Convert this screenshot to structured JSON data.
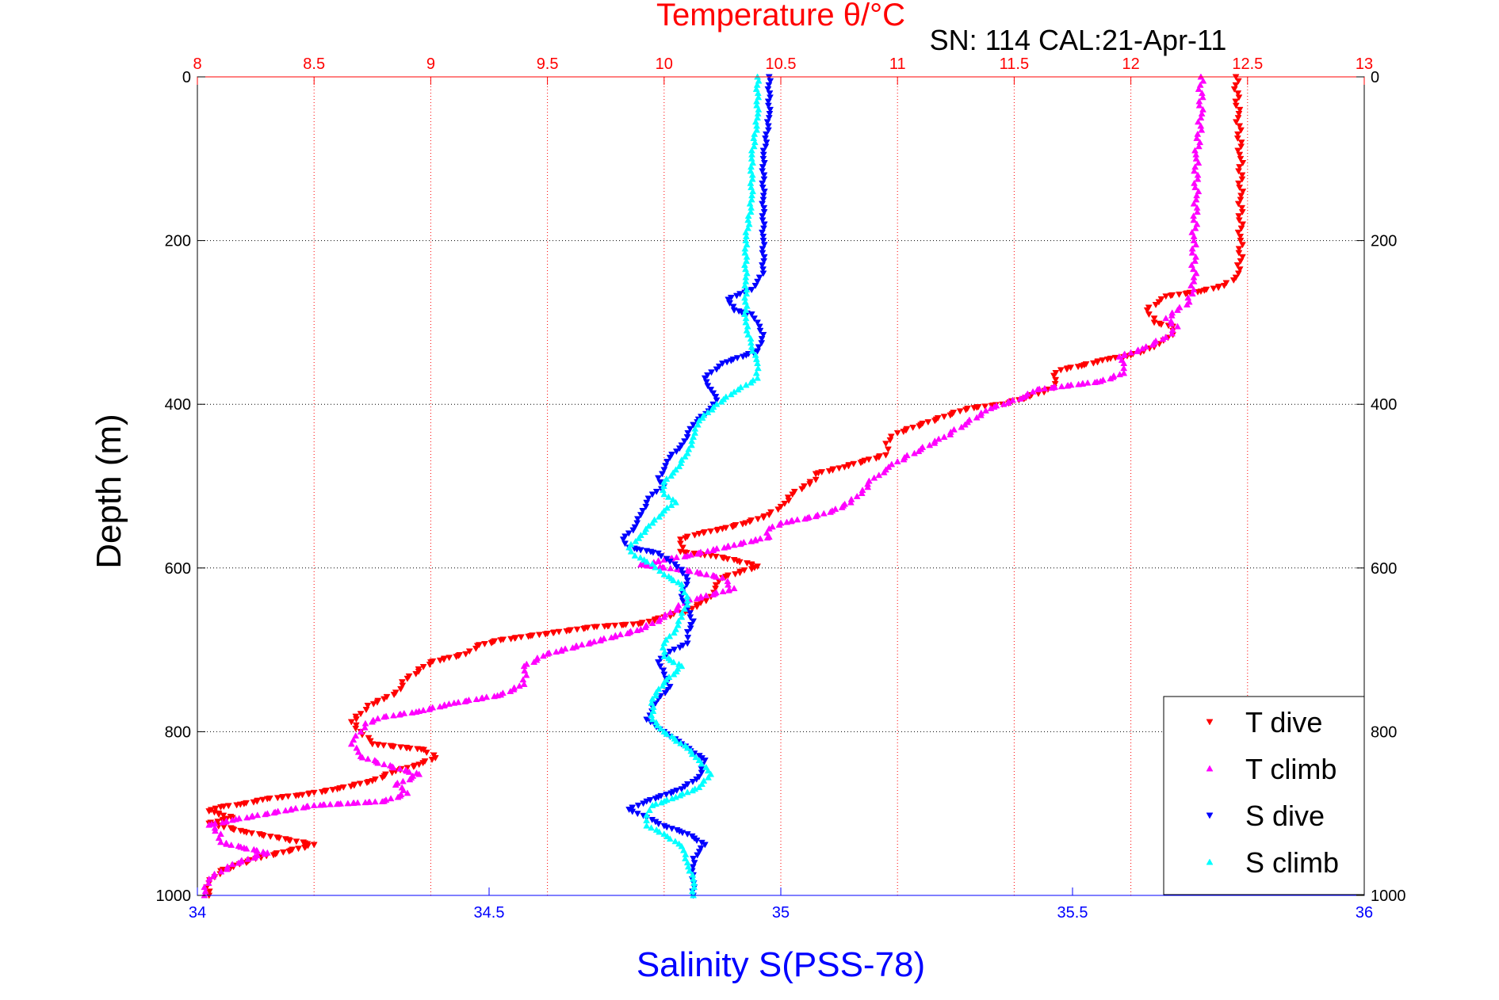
{
  "chart_data": {
    "type": "scatter",
    "title": "Temperature θ/°C",
    "subtitle": "SN: 114  CAL:21-Apr-11",
    "xlabel": "Salinity S(PSS-78)",
    "ylabel": "Depth (m)",
    "top_axis_color": "#ff0000",
    "bottom_axis_color": "#0000ff",
    "top_xlim": [
      8,
      13
    ],
    "top_ticks": [
      "8",
      "8.5",
      "9",
      "9.5",
      "10",
      "10.5",
      "11",
      "11.5",
      "12",
      "12.5",
      "13"
    ],
    "bottom_xlim": [
      34,
      36
    ],
    "bottom_ticks": [
      "34",
      "34.5",
      "35",
      "35.5",
      "36"
    ],
    "ylim": [
      0,
      1000
    ],
    "y_ticks": [
      "0",
      "200",
      "400",
      "600",
      "800",
      "1000"
    ],
    "y_reversed": true,
    "grid": true,
    "legend_position": "bottom-right",
    "series": [
      {
        "name": "T dive",
        "axis": "top",
        "color": "#ff0000",
        "marker": "triangle-down",
        "points": [
          [
            12.45,
            0
          ],
          [
            12.46,
            50
          ],
          [
            12.47,
            100
          ],
          [
            12.47,
            150
          ],
          [
            12.47,
            200
          ],
          [
            12.47,
            225
          ],
          [
            12.45,
            245
          ],
          [
            12.4,
            255
          ],
          [
            12.3,
            262
          ],
          [
            12.15,
            268
          ],
          [
            12.12,
            275
          ],
          [
            12.07,
            285
          ],
          [
            12.1,
            300
          ],
          [
            12.18,
            305
          ],
          [
            12.18,
            315
          ],
          [
            12.14,
            322
          ],
          [
            12.1,
            330
          ],
          [
            12.0,
            340
          ],
          [
            11.9,
            345
          ],
          [
            11.8,
            352
          ],
          [
            11.7,
            358
          ],
          [
            11.67,
            365
          ],
          [
            11.67,
            380
          ],
          [
            11.55,
            392
          ],
          [
            11.45,
            400
          ],
          [
            11.3,
            405
          ],
          [
            11.2,
            415
          ],
          [
            11.1,
            425
          ],
          [
            11.0,
            435
          ],
          [
            10.95,
            448
          ],
          [
            10.95,
            462
          ],
          [
            10.85,
            470
          ],
          [
            10.75,
            478
          ],
          [
            10.65,
            485
          ],
          [
            10.65,
            492
          ],
          [
            10.6,
            500
          ],
          [
            10.55,
            510
          ],
          [
            10.5,
            525
          ],
          [
            10.45,
            535
          ],
          [
            10.35,
            545
          ],
          [
            10.25,
            552
          ],
          [
            10.15,
            558
          ],
          [
            10.07,
            565
          ],
          [
            10.07,
            580
          ],
          [
            10.2,
            585
          ],
          [
            10.3,
            590
          ],
          [
            10.4,
            598
          ],
          [
            10.25,
            612
          ],
          [
            10.22,
            625
          ],
          [
            10.18,
            640
          ],
          [
            10.1,
            652
          ],
          [
            10.0,
            660
          ],
          [
            9.9,
            668
          ],
          [
            9.7,
            672
          ],
          [
            9.5,
            680
          ],
          [
            9.3,
            688
          ],
          [
            9.2,
            695
          ],
          [
            9.15,
            705
          ],
          [
            9.0,
            715
          ],
          [
            8.9,
            735
          ],
          [
            8.85,
            752
          ],
          [
            8.8,
            760
          ],
          [
            8.73,
            768
          ],
          [
            8.7,
            778
          ],
          [
            8.66,
            788
          ],
          [
            8.7,
            800
          ],
          [
            8.75,
            815
          ],
          [
            8.97,
            822
          ],
          [
            9.02,
            832
          ],
          [
            8.95,
            840
          ],
          [
            8.85,
            848
          ],
          [
            8.75,
            860
          ],
          [
            8.6,
            870
          ],
          [
            8.45,
            877
          ],
          [
            8.3,
            882
          ],
          [
            8.2,
            888
          ],
          [
            8.1,
            892
          ],
          [
            8.05,
            897
          ],
          [
            8.15,
            905
          ],
          [
            8.05,
            912
          ],
          [
            8.2,
            922
          ],
          [
            8.35,
            930
          ],
          [
            8.5,
            938
          ],
          [
            8.4,
            945
          ],
          [
            8.25,
            955
          ],
          [
            8.1,
            970
          ],
          [
            8.05,
            985
          ],
          [
            8.05,
            1000
          ]
        ]
      },
      {
        "name": "T climb",
        "axis": "top",
        "color": "#ff00ff",
        "marker": "triangle-up",
        "points": [
          [
            12.3,
            0
          ],
          [
            12.3,
            50
          ],
          [
            12.28,
            100
          ],
          [
            12.28,
            150
          ],
          [
            12.27,
            200
          ],
          [
            12.27,
            250
          ],
          [
            12.25,
            275
          ],
          [
            12.2,
            285
          ],
          [
            12.15,
            295
          ],
          [
            12.2,
            305
          ],
          [
            12.15,
            318
          ],
          [
            12.05,
            332
          ],
          [
            11.95,
            342
          ],
          [
            11.97,
            350
          ],
          [
            11.97,
            362
          ],
          [
            11.87,
            372
          ],
          [
            11.6,
            382
          ],
          [
            11.55,
            390
          ],
          [
            11.4,
            405
          ],
          [
            11.3,
            422
          ],
          [
            11.2,
            440
          ],
          [
            11.1,
            455
          ],
          [
            11.0,
            470
          ],
          [
            10.95,
            480
          ],
          [
            10.9,
            490
          ],
          [
            10.85,
            505
          ],
          [
            10.8,
            520
          ],
          [
            10.72,
            530
          ],
          [
            10.65,
            537
          ],
          [
            10.5,
            545
          ],
          [
            10.45,
            552
          ],
          [
            10.45,
            562
          ],
          [
            10.3,
            572
          ],
          [
            10.1,
            585
          ],
          [
            10.0,
            590
          ],
          [
            9.9,
            596
          ],
          [
            10.1,
            603
          ],
          [
            10.25,
            612
          ],
          [
            10.3,
            625
          ],
          [
            10.1,
            640
          ],
          [
            10.0,
            660
          ],
          [
            9.9,
            675
          ],
          [
            9.7,
            690
          ],
          [
            9.5,
            705
          ],
          [
            9.4,
            720
          ],
          [
            9.4,
            742
          ],
          [
            9.3,
            755
          ],
          [
            9.1,
            765
          ],
          [
            8.95,
            775
          ],
          [
            8.8,
            782
          ],
          [
            8.72,
            790
          ],
          [
            8.7,
            800
          ],
          [
            8.66,
            815
          ],
          [
            8.7,
            830
          ],
          [
            8.8,
            840
          ],
          [
            8.95,
            852
          ],
          [
            8.85,
            865
          ],
          [
            8.9,
            875
          ],
          [
            8.8,
            885
          ],
          [
            8.5,
            890
          ],
          [
            8.3,
            900
          ],
          [
            8.15,
            908
          ],
          [
            8.05,
            914
          ],
          [
            8.1,
            925
          ],
          [
            8.1,
            935
          ],
          [
            8.2,
            942
          ],
          [
            8.3,
            948
          ],
          [
            8.15,
            962
          ],
          [
            8.05,
            980
          ],
          [
            8.03,
            1000
          ]
        ]
      },
      {
        "name": "S dive",
        "axis": "bottom",
        "color": "#0000ff",
        "marker": "triangle-down",
        "points": [
          [
            34.98,
            0
          ],
          [
            34.98,
            50
          ],
          [
            34.97,
            100
          ],
          [
            34.97,
            150
          ],
          [
            34.97,
            200
          ],
          [
            34.97,
            240
          ],
          [
            34.96,
            250
          ],
          [
            34.95,
            260
          ],
          [
            34.93,
            265
          ],
          [
            34.91,
            272
          ],
          [
            34.92,
            285
          ],
          [
            34.95,
            290
          ],
          [
            34.96,
            300
          ],
          [
            34.97,
            315
          ],
          [
            34.96,
            335
          ],
          [
            34.9,
            350
          ],
          [
            34.87,
            368
          ],
          [
            34.88,
            382
          ],
          [
            34.89,
            395
          ],
          [
            34.88,
            405
          ],
          [
            34.85,
            425
          ],
          [
            34.83,
            450
          ],
          [
            34.81,
            465
          ],
          [
            34.8,
            480
          ],
          [
            34.79,
            490
          ],
          [
            34.8,
            500
          ],
          [
            34.78,
            510
          ],
          [
            34.77,
            520
          ],
          [
            34.76,
            535
          ],
          [
            34.75,
            550
          ],
          [
            34.73,
            565
          ],
          [
            34.74,
            575
          ],
          [
            34.79,
            582
          ],
          [
            34.81,
            592
          ],
          [
            34.83,
            602
          ],
          [
            34.84,
            615
          ],
          [
            34.83,
            635
          ],
          [
            34.84,
            650
          ],
          [
            34.85,
            665
          ],
          [
            34.84,
            678
          ],
          [
            34.84,
            692
          ],
          [
            34.81,
            702
          ],
          [
            34.79,
            715
          ],
          [
            34.8,
            730
          ],
          [
            34.81,
            745
          ],
          [
            34.79,
            760
          ],
          [
            34.77,
            785
          ],
          [
            34.8,
            800
          ],
          [
            34.83,
            815
          ],
          [
            34.87,
            835
          ],
          [
            34.86,
            855
          ],
          [
            34.83,
            870
          ],
          [
            34.77,
            885
          ],
          [
            34.74,
            895
          ],
          [
            34.77,
            905
          ],
          [
            34.8,
            915
          ],
          [
            34.84,
            925
          ],
          [
            34.87,
            938
          ],
          [
            34.85,
            955
          ],
          [
            34.85,
            975
          ],
          [
            34.85,
            1000
          ]
        ]
      },
      {
        "name": "S climb",
        "axis": "bottom",
        "color": "#00ffff",
        "marker": "triangle-up",
        "points": [
          [
            34.96,
            0
          ],
          [
            34.96,
            50
          ],
          [
            34.95,
            100
          ],
          [
            34.95,
            150
          ],
          [
            34.94,
            200
          ],
          [
            34.94,
            250
          ],
          [
            34.94,
            300
          ],
          [
            34.95,
            330
          ],
          [
            34.96,
            350
          ],
          [
            34.96,
            368
          ],
          [
            34.92,
            385
          ],
          [
            34.89,
            400
          ],
          [
            34.86,
            420
          ],
          [
            34.85,
            440
          ],
          [
            34.84,
            460
          ],
          [
            34.82,
            480
          ],
          [
            34.8,
            495
          ],
          [
            34.8,
            510
          ],
          [
            34.82,
            520
          ],
          [
            34.8,
            530
          ],
          [
            34.78,
            545
          ],
          [
            34.76,
            560
          ],
          [
            34.74,
            575
          ],
          [
            34.75,
            585
          ],
          [
            34.78,
            595
          ],
          [
            34.8,
            608
          ],
          [
            34.83,
            620
          ],
          [
            34.84,
            640
          ],
          [
            34.83,
            660
          ],
          [
            34.82,
            675
          ],
          [
            34.8,
            692
          ],
          [
            34.8,
            708
          ],
          [
            34.83,
            720
          ],
          [
            34.8,
            740
          ],
          [
            34.78,
            760
          ],
          [
            34.78,
            785
          ],
          [
            34.8,
            800
          ],
          [
            34.84,
            820
          ],
          [
            34.86,
            835
          ],
          [
            34.88,
            852
          ],
          [
            34.86,
            868
          ],
          [
            34.82,
            880
          ],
          [
            34.78,
            890
          ],
          [
            34.77,
            902
          ],
          [
            34.77,
            915
          ],
          [
            34.8,
            925
          ],
          [
            34.83,
            940
          ],
          [
            34.84,
            960
          ],
          [
            34.85,
            980
          ],
          [
            34.85,
            1000
          ]
        ]
      }
    ]
  }
}
